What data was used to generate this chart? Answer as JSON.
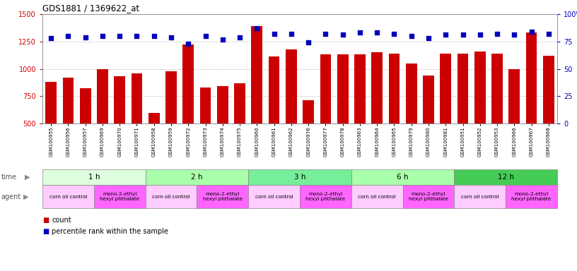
{
  "title": "GDS1881 / 1369622_at",
  "samples": [
    "GSM100955",
    "GSM100956",
    "GSM100957",
    "GSM100969",
    "GSM100970",
    "GSM100971",
    "GSM100958",
    "GSM100959",
    "GSM100972",
    "GSM100973",
    "GSM100974",
    "GSM100975",
    "GSM100960",
    "GSM100961",
    "GSM100962",
    "GSM100976",
    "GSM100977",
    "GSM100978",
    "GSM100963",
    "GSM100964",
    "GSM100965",
    "GSM100979",
    "GSM100980",
    "GSM100981",
    "GSM100951",
    "GSM100952",
    "GSM100953",
    "GSM100966",
    "GSM100967",
    "GSM100968"
  ],
  "counts": [
    880,
    920,
    820,
    1000,
    930,
    960,
    600,
    975,
    1220,
    830,
    840,
    870,
    1390,
    1110,
    1180,
    710,
    1130,
    1130,
    1130,
    1150,
    1140,
    1050,
    940,
    1140,
    1140,
    1160,
    1140,
    1000,
    1330,
    1120
  ],
  "percentiles": [
    78,
    80,
    79,
    80,
    80,
    80,
    80,
    79,
    73,
    80,
    77,
    79,
    87,
    82,
    82,
    74,
    82,
    81,
    83,
    83,
    82,
    80,
    78,
    81,
    81,
    81,
    82,
    81,
    84,
    82
  ],
  "bar_color": "#cc0000",
  "dot_color": "#0000bb",
  "ylim_left": [
    500,
    1500
  ],
  "ylim_right": [
    0,
    100
  ],
  "yticks_left": [
    500,
    750,
    1000,
    1250,
    1500
  ],
  "yticks_right": [
    0,
    25,
    50,
    75,
    100
  ],
  "time_groups": [
    {
      "label": "1 h",
      "start": 0,
      "end": 6,
      "color": "#ddffdd"
    },
    {
      "label": "2 h",
      "start": 6,
      "end": 12,
      "color": "#aaffaa"
    },
    {
      "label": "3 h",
      "start": 12,
      "end": 18,
      "color": "#77ee99"
    },
    {
      "label": "6 h",
      "start": 18,
      "end": 24,
      "color": "#aaffaa"
    },
    {
      "label": "12 h",
      "start": 24,
      "end": 30,
      "color": "#44cc55"
    }
  ],
  "agent_groups": [
    {
      "label": "corn oil control",
      "start": 0,
      "end": 3,
      "color": "#ffccff"
    },
    {
      "label": "mono-2-ethyl\nhexyl phthalate",
      "start": 3,
      "end": 6,
      "color": "#ff66ff"
    },
    {
      "label": "corn oil control",
      "start": 6,
      "end": 9,
      "color": "#ffccff"
    },
    {
      "label": "mono-2-ethyl\nhexyl phthalate",
      "start": 9,
      "end": 12,
      "color": "#ff66ff"
    },
    {
      "label": "corn oil control",
      "start": 12,
      "end": 15,
      "color": "#ffccff"
    },
    {
      "label": "mono-2-ethyl\nhexyl phthalate",
      "start": 15,
      "end": 18,
      "color": "#ff66ff"
    },
    {
      "label": "corn oil control",
      "start": 18,
      "end": 21,
      "color": "#ffccff"
    },
    {
      "label": "mono-2-ethyl\nhexyl phthalate",
      "start": 21,
      "end": 24,
      "color": "#ff66ff"
    },
    {
      "label": "corn oil control",
      "start": 24,
      "end": 27,
      "color": "#ffccff"
    },
    {
      "label": "mono-2-ethyl\nhexyl phthalate",
      "start": 27,
      "end": 30,
      "color": "#ff66ff"
    }
  ],
  "bg_color": "#ffffff",
  "grid_color": "#888888",
  "tick_color_left": "#cc0000",
  "tick_color_right": "#0000bb",
  "label_left": "time",
  "label_right": "agent"
}
